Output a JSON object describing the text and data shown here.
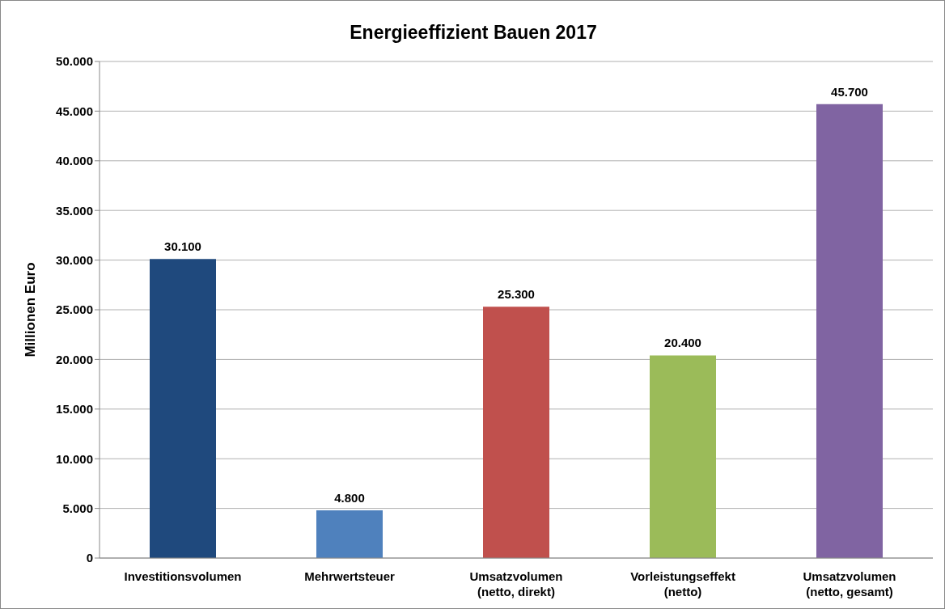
{
  "chart_data": {
    "type": "bar",
    "title": "Energieeffizient Bauen 2017",
    "ylabel": "Millionen Euro",
    "categories": [
      "Investitionsvolumen",
      "Mehrwertsteuer",
      "Umsatzvolumen\n(netto, direkt)",
      "Vorleistungseffekt\n(netto)",
      "Umsatzvolumen\n(netto, gesamt)"
    ],
    "values": [
      30100,
      4800,
      25300,
      20400,
      45700
    ],
    "value_labels": [
      "30.100",
      "4.800",
      "25.300",
      "20.400",
      "45.700"
    ],
    "colors": [
      "#1f497d",
      "#4f81bd",
      "#c0504d",
      "#9bbb59",
      "#8064a2"
    ],
    "ylim": [
      0,
      50000
    ],
    "yticks": [
      {
        "value": 0,
        "label": "0"
      },
      {
        "value": 5000,
        "label": "5.000"
      },
      {
        "value": 10000,
        "label": "10.000"
      },
      {
        "value": 15000,
        "label": "15.000"
      },
      {
        "value": 20000,
        "label": "20.000"
      },
      {
        "value": 25000,
        "label": "25.000"
      },
      {
        "value": 30000,
        "label": "30.000"
      },
      {
        "value": 35000,
        "label": "35.000"
      },
      {
        "value": 40000,
        "label": "40.000"
      },
      {
        "value": 45000,
        "label": "45.000"
      },
      {
        "value": 50000,
        "label": "50.000"
      }
    ],
    "grid": "y"
  }
}
